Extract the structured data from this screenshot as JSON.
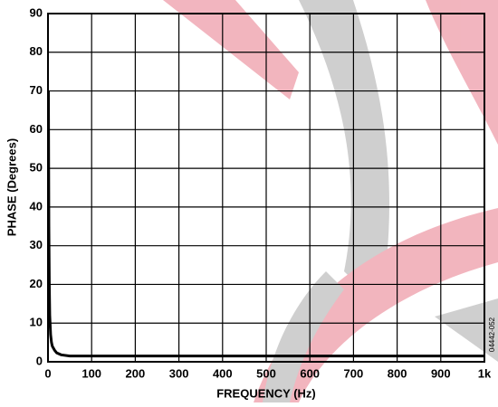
{
  "chart_data": {
    "type": "line",
    "x_label": "FREQUENCY (Hz)",
    "y_label": "PHASE (Degrees)",
    "figure_id": "04442-052",
    "xlim": [
      0,
      1000
    ],
    "xticks": [
      0,
      100,
      200,
      300,
      400,
      500,
      600,
      700,
      800,
      900,
      {
        "value": 1000,
        "label": "1k"
      }
    ],
    "ylim": [
      0,
      90
    ],
    "yticks": [
      0,
      10,
      20,
      30,
      40,
      50,
      60,
      70,
      80,
      90
    ],
    "grid": true,
    "series": [
      {
        "color": "#000000",
        "x": [
          1,
          2,
          3,
          4,
          6,
          8,
          10,
          15,
          20,
          30,
          50,
          100,
          200,
          300,
          400,
          500,
          600,
          700,
          800,
          900,
          1000
        ],
        "values": [
          70,
          35,
          20,
          12,
          7,
          5,
          4,
          3,
          2.3,
          1.8,
          1.5,
          1.5,
          1.5,
          1.5,
          1.5,
          1.5,
          1.5,
          1.5,
          1.5,
          1.5,
          1.5
        ]
      }
    ]
  }
}
